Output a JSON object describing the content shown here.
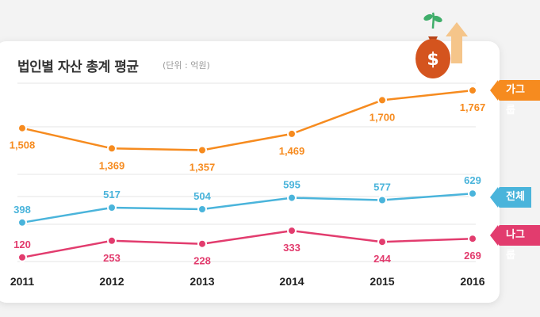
{
  "title": "법인별 자산 총계 평균",
  "unit": "(단위 : 억원)",
  "colors": {
    "series_orange": "#f68b1f",
    "series_blue": "#4ab4db",
    "series_pink": "#e23c6e",
    "grid": "#e4e4e4",
    "bag": "#d4541e",
    "arrow": "#f5c58a",
    "sprout": "#3fae6a"
  },
  "icon": {
    "name": "money-bag-growth-icon",
    "symbol": "$"
  },
  "chart_data": {
    "type": "line",
    "title": "법인별 자산 총계 평균",
    "unit": "(단위 : 억원)",
    "x": [
      "2011",
      "2012",
      "2013",
      "2014",
      "2015",
      "2016"
    ],
    "grid": true,
    "legend_placement": "right",
    "series": [
      {
        "name": "가그룹",
        "color": "#f68b1f",
        "values": [
          1508,
          1369,
          1357,
          1469,
          1700,
          1767
        ],
        "labels": [
          "1,508",
          "1,369",
          "1,357",
          "1,469",
          "1,700",
          "1,767"
        ]
      },
      {
        "name": "전체",
        "color": "#4ab4db",
        "values": [
          398,
          517,
          504,
          595,
          577,
          629
        ],
        "labels": [
          "398",
          "517",
          "504",
          "595",
          "577",
          "629"
        ]
      },
      {
        "name": "나그룹",
        "color": "#e23c6e",
        "values": [
          120,
          253,
          228,
          333,
          244,
          269
        ],
        "labels": [
          "120",
          "253",
          "228",
          "333",
          "244",
          "269"
        ]
      }
    ]
  }
}
